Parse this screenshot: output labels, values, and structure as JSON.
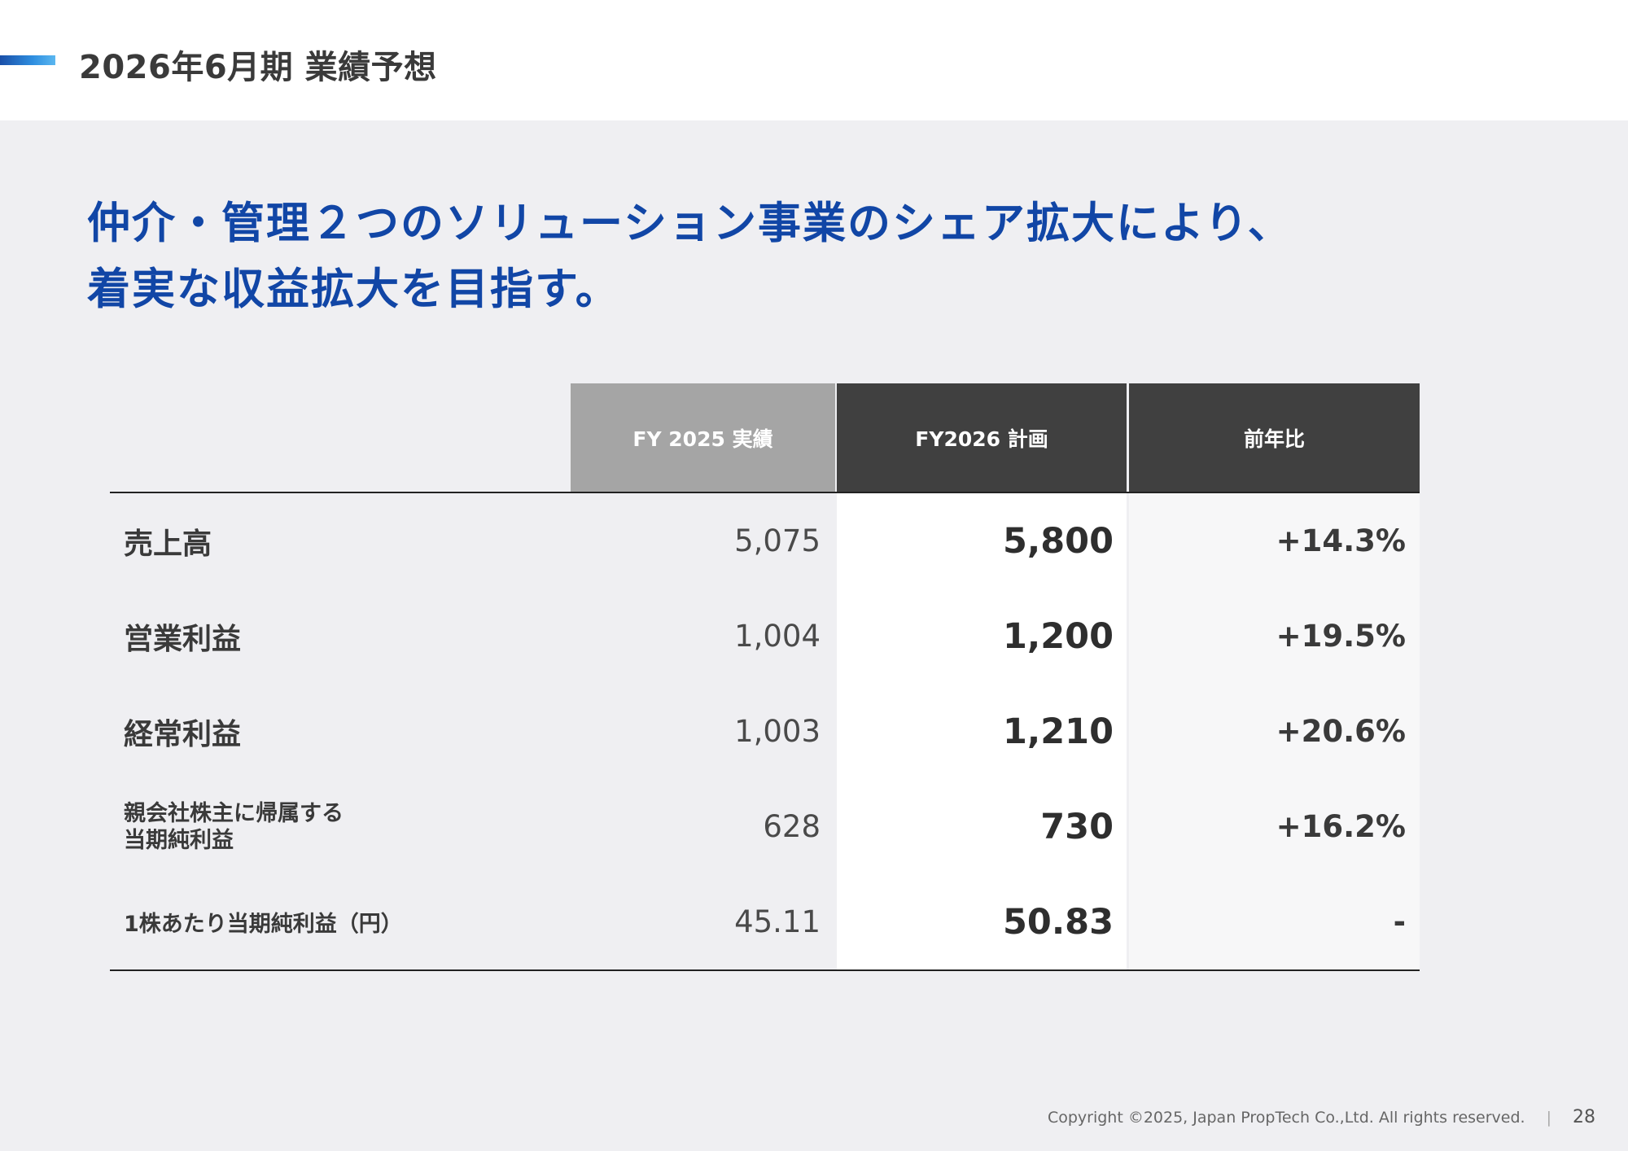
{
  "header": {
    "title": "2026年6月期 業績予想"
  },
  "headline": {
    "line1": "仲介・管理２つのソリューション事業のシェア拡大により、",
    "line2": "着実な収益拡大を目指す。"
  },
  "table": {
    "columns": [
      "FY 2025 実績",
      "FY2026 計画",
      "前年比"
    ],
    "rows": [
      {
        "label": "売上高",
        "actual": "5,075",
        "plan": "5,800",
        "yoy": "+14.3%"
      },
      {
        "label": "営業利益",
        "actual": "1,004",
        "plan": "1,200",
        "yoy": "+19.5%"
      },
      {
        "label": "経常利益",
        "actual": "1,003",
        "plan": "1,210",
        "yoy": "+20.6%"
      },
      {
        "label_line1": "親会社株主に帰属する",
        "label_line2": "当期純利益",
        "actual": "628",
        "plan": "730",
        "yoy": "+16.2%"
      },
      {
        "label": "1株あたり当期純利益（円）",
        "actual": "45.11",
        "plan": "50.83",
        "yoy": "-"
      }
    ]
  },
  "footer": {
    "copyright": "Copyright ©2025, Japan PropTech Co.,Ltd. All rights reserved.",
    "separator": "|",
    "page": "28"
  },
  "colors": {
    "accent_blue": "#1146a6",
    "header_dark": "#404040",
    "header_gray": "#a5a5a5",
    "background": "#efeff2"
  }
}
